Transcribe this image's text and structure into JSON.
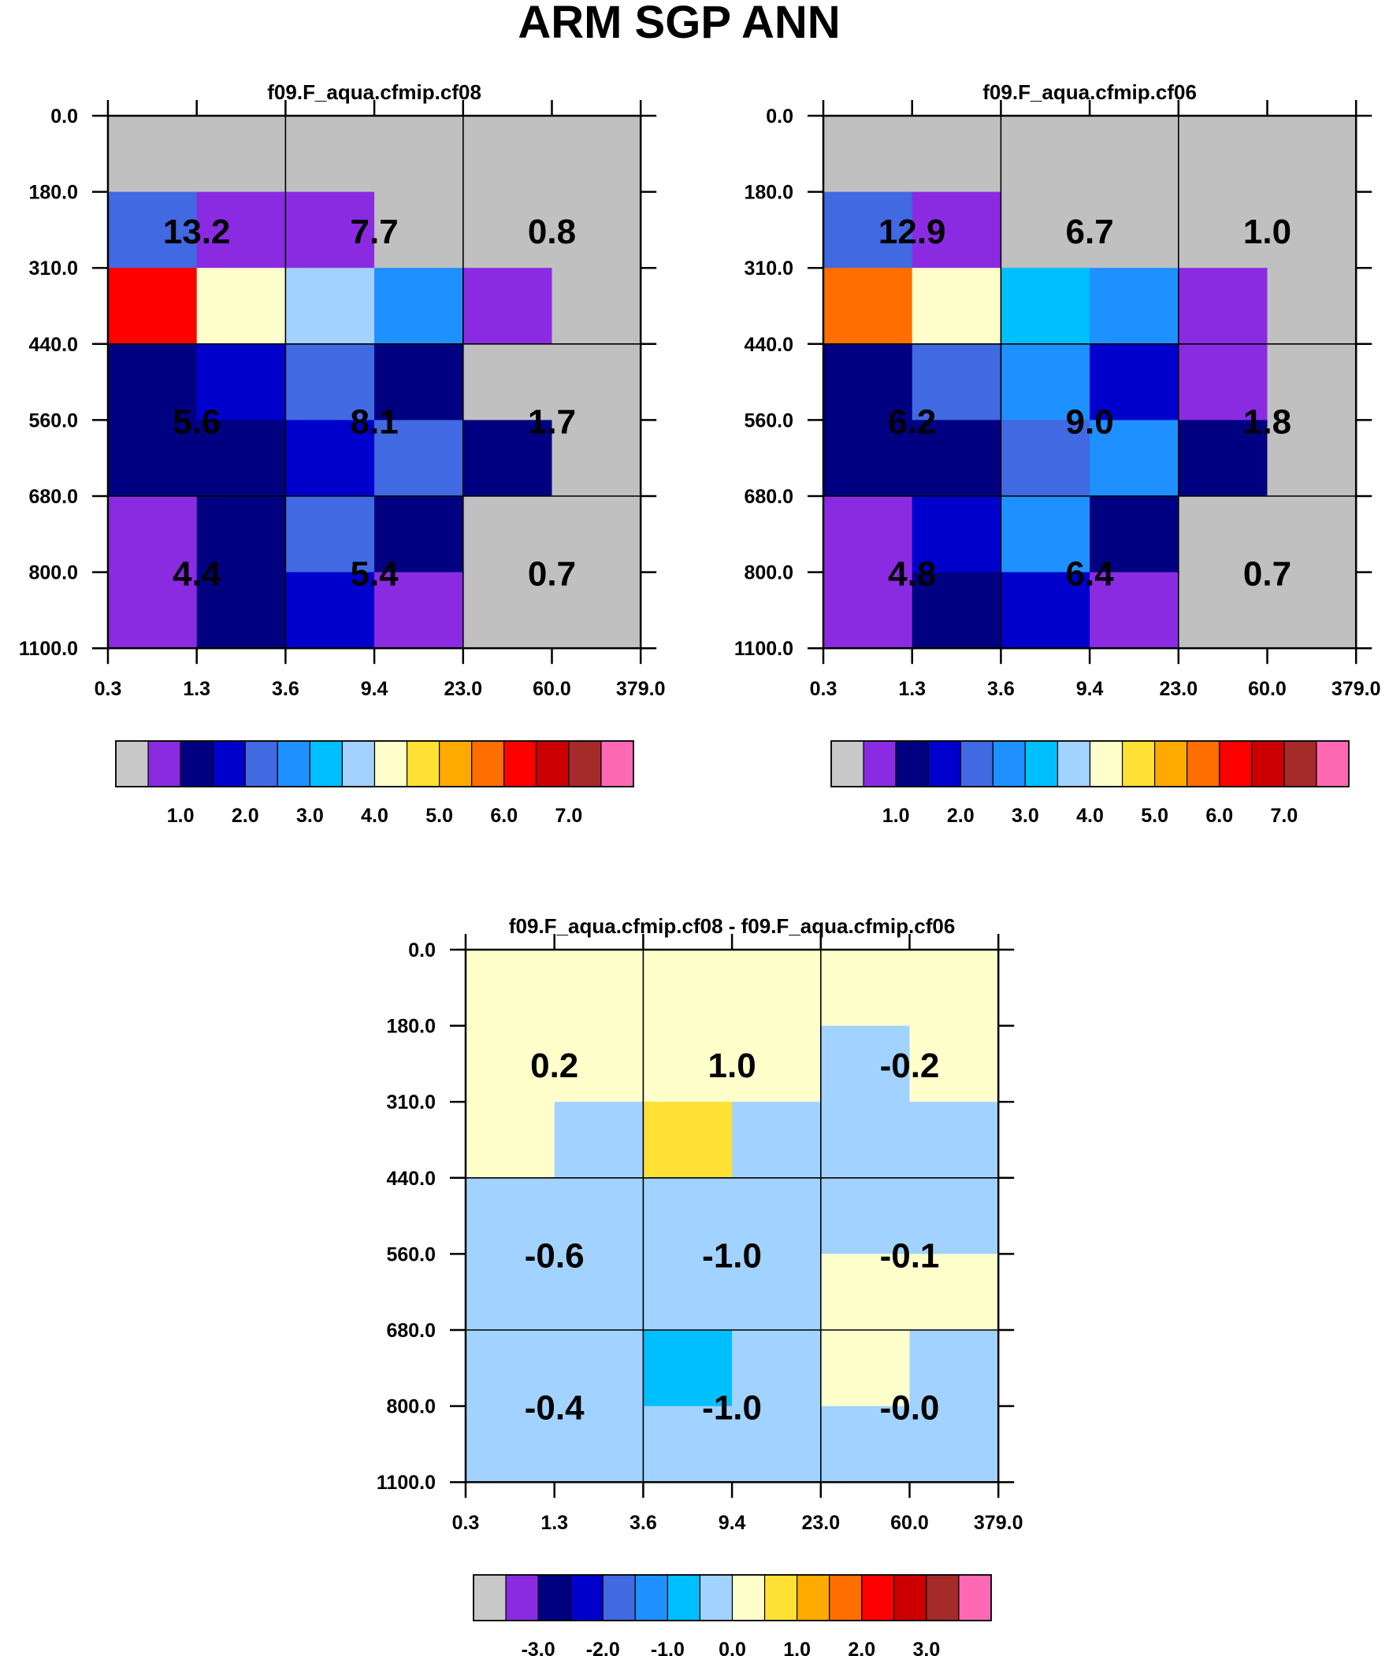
{
  "title": "ARM SGP ANN",
  "chart_data": [
    {
      "type": "heatmap",
      "title": "f09.F_aqua.cfmip.cf08",
      "xticks": [
        "0.3",
        "1.3",
        "3.6",
        "9.4",
        "23.0",
        "60.0",
        "379.0"
      ],
      "yticks": [
        "0.0",
        "180.0",
        "310.0",
        "440.0",
        "560.0",
        "680.0",
        "800.0",
        "1100.0"
      ],
      "cells": [
        [
          "#C0C0C0",
          "#C0C0C0",
          "#C0C0C0",
          "#C0C0C0",
          "#C0C0C0",
          "#C0C0C0"
        ],
        [
          "#4169E1",
          "#8A2BE2",
          "#8A2BE2",
          "#C0C0C0",
          "#C0C0C0",
          "#C0C0C0"
        ],
        [
          "#FF0000",
          "#FFFFCC",
          "#A2D2FF",
          "#1E90FF",
          "#8A2BE2",
          "#C0C0C0"
        ],
        [
          "#000080",
          "#0000CD",
          "#4169E1",
          "#000080",
          "#C0C0C0",
          "#C0C0C0"
        ],
        [
          "#000080",
          "#000080",
          "#0000CD",
          "#4169E1",
          "#000080",
          "#C0C0C0"
        ],
        [
          "#8A2BE2",
          "#000080",
          "#4169E1",
          "#000080",
          "#C0C0C0",
          "#C0C0C0"
        ],
        [
          "#8A2BE2",
          "#000080",
          "#0000CD",
          "#8A2BE2",
          "#C0C0C0",
          "#C0C0C0"
        ]
      ],
      "block_values": [
        [
          "13.2",
          "7.7",
          "0.8"
        ],
        [
          "5.6",
          "8.1",
          "1.7"
        ],
        [
          "4.4",
          "5.4",
          "0.7"
        ]
      ],
      "colorbar": {
        "colors": [
          "#C8C8C8",
          "#8A2BE2",
          "#000080",
          "#0000CD",
          "#4169E1",
          "#1E90FF",
          "#00BFFF",
          "#A2D2FF",
          "#FFFFCC",
          "#FFE135",
          "#FFAA00",
          "#FF6E00",
          "#FF0000",
          "#CC0000",
          "#A52A2A",
          "#FF69B4"
        ],
        "labels": [
          "1.0",
          "2.0",
          "3.0",
          "4.0",
          "5.0",
          "6.0",
          "7.0"
        ]
      }
    },
    {
      "type": "heatmap",
      "title": "f09.F_aqua.cfmip.cf06",
      "xticks": [
        "0.3",
        "1.3",
        "3.6",
        "9.4",
        "23.0",
        "60.0",
        "379.0"
      ],
      "yticks": [
        "0.0",
        "180.0",
        "310.0",
        "440.0",
        "560.0",
        "680.0",
        "800.0",
        "1100.0"
      ],
      "cells": [
        [
          "#C0C0C0",
          "#C0C0C0",
          "#C0C0C0",
          "#C0C0C0",
          "#C0C0C0",
          "#C0C0C0"
        ],
        [
          "#4169E1",
          "#8A2BE2",
          "#C0C0C0",
          "#C0C0C0",
          "#C0C0C0",
          "#C0C0C0"
        ],
        [
          "#FF6E00",
          "#FFFFCC",
          "#00BFFF",
          "#1E90FF",
          "#8A2BE2",
          "#C0C0C0"
        ],
        [
          "#000080",
          "#4169E1",
          "#1E90FF",
          "#0000CD",
          "#8A2BE2",
          "#C0C0C0"
        ],
        [
          "#000080",
          "#000080",
          "#4169E1",
          "#1E90FF",
          "#000080",
          "#C0C0C0"
        ],
        [
          "#8A2BE2",
          "#0000CD",
          "#1E90FF",
          "#000080",
          "#C0C0C0",
          "#C0C0C0"
        ],
        [
          "#8A2BE2",
          "#000080",
          "#0000CD",
          "#8A2BE2",
          "#C0C0C0",
          "#C0C0C0"
        ]
      ],
      "block_values": [
        [
          "12.9",
          "6.7",
          "1.0"
        ],
        [
          "6.2",
          "9.0",
          "1.8"
        ],
        [
          "4.8",
          "6.4",
          "0.7"
        ]
      ],
      "colorbar": {
        "colors": [
          "#C8C8C8",
          "#8A2BE2",
          "#000080",
          "#0000CD",
          "#4169E1",
          "#1E90FF",
          "#00BFFF",
          "#A2D2FF",
          "#FFFFCC",
          "#FFE135",
          "#FFAA00",
          "#FF6E00",
          "#FF0000",
          "#CC0000",
          "#A52A2A",
          "#FF69B4"
        ],
        "labels": [
          "1.0",
          "2.0",
          "3.0",
          "4.0",
          "5.0",
          "6.0",
          "7.0"
        ]
      }
    },
    {
      "type": "heatmap",
      "title": "f09.F_aqua.cfmip.cf08 - f09.F_aqua.cfmip.cf06",
      "xticks": [
        "0.3",
        "1.3",
        "3.6",
        "9.4",
        "23.0",
        "60.0",
        "379.0"
      ],
      "yticks": [
        "0.0",
        "180.0",
        "310.0",
        "440.0",
        "560.0",
        "680.0",
        "800.0",
        "1100.0"
      ],
      "cells": [
        [
          "#FFFFCC",
          "#FFFFCC",
          "#FFFFCC",
          "#FFFFCC",
          "#FFFFCC",
          "#FFFFCC"
        ],
        [
          "#FFFFCC",
          "#FFFFCC",
          "#FFFFCC",
          "#FFFFCC",
          "#A2D2FF",
          "#FFFFCC"
        ],
        [
          "#FFFFCC",
          "#A2D2FF",
          "#FFE135",
          "#A2D2FF",
          "#A2D2FF",
          "#A2D2FF"
        ],
        [
          "#A2D2FF",
          "#A2D2FF",
          "#A2D2FF",
          "#A2D2FF",
          "#A2D2FF",
          "#A2D2FF"
        ],
        [
          "#A2D2FF",
          "#A2D2FF",
          "#A2D2FF",
          "#A2D2FF",
          "#FFFFCC",
          "#FFFFCC"
        ],
        [
          "#A2D2FF",
          "#A2D2FF",
          "#00BFFF",
          "#A2D2FF",
          "#FFFFCC",
          "#A2D2FF"
        ],
        [
          "#A2D2FF",
          "#A2D2FF",
          "#A2D2FF",
          "#A2D2FF",
          "#A2D2FF",
          "#A2D2FF"
        ]
      ],
      "block_values": [
        [
          "0.2",
          "1.0",
          "-0.2"
        ],
        [
          "-0.6",
          "-1.0",
          "-0.1"
        ],
        [
          "-0.4",
          "-1.0",
          "-0.0"
        ]
      ],
      "colorbar": {
        "colors": [
          "#C8C8C8",
          "#8A2BE2",
          "#000080",
          "#0000CD",
          "#4169E1",
          "#1E90FF",
          "#00BFFF",
          "#A2D2FF",
          "#FFFFCC",
          "#FFE135",
          "#FFAA00",
          "#FF6E00",
          "#FF0000",
          "#CC0000",
          "#A52A2A",
          "#FF69B4"
        ],
        "labels": [
          "-3.0",
          "-2.0",
          "-1.0",
          "0.0",
          "1.0",
          "2.0",
          "3.0"
        ]
      }
    }
  ]
}
